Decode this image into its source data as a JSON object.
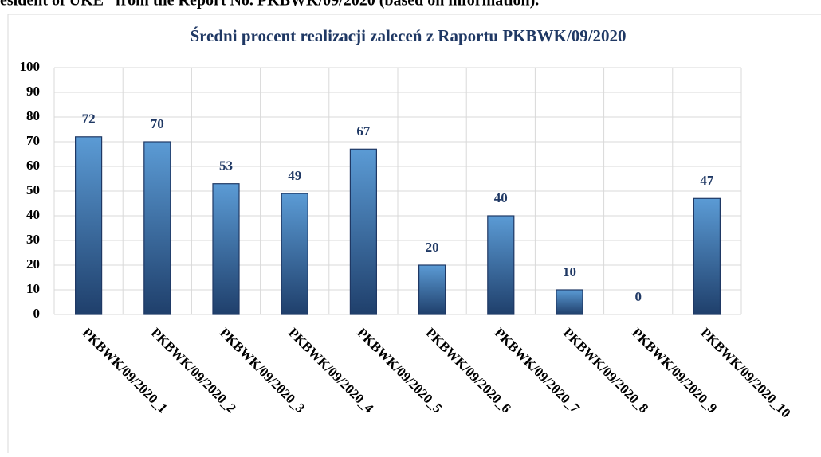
{
  "caption": "esident of UKE” from the Report No. PKBWK/09/2020 (based on information).",
  "chart_data": {
    "type": "bar",
    "title": "Średni procent realizacji zaleceń z Raportu PKBWK/09/2020",
    "categories": [
      "PKBWK/09/2020_1",
      "PKBWK/09/2020_2",
      "PKBWK/09/2020_3",
      "PKBWK/09/2020_4",
      "PKBWK/09/2020_5",
      "PKBWK/09/2020_6",
      "PKBWK/09/2020_7",
      "PKBWK/09/2020_8",
      "PKBWK/09/2020_9",
      "PKBWK/09/2020_10"
    ],
    "values": [
      72,
      70,
      53,
      49,
      67,
      20,
      40,
      10,
      0,
      47
    ],
    "color": "#5b9bd5",
    "ylim": [
      0,
      100
    ],
    "yticks": [
      0,
      10,
      20,
      30,
      40,
      50,
      60,
      70,
      80,
      90,
      100
    ],
    "grid": true
  }
}
